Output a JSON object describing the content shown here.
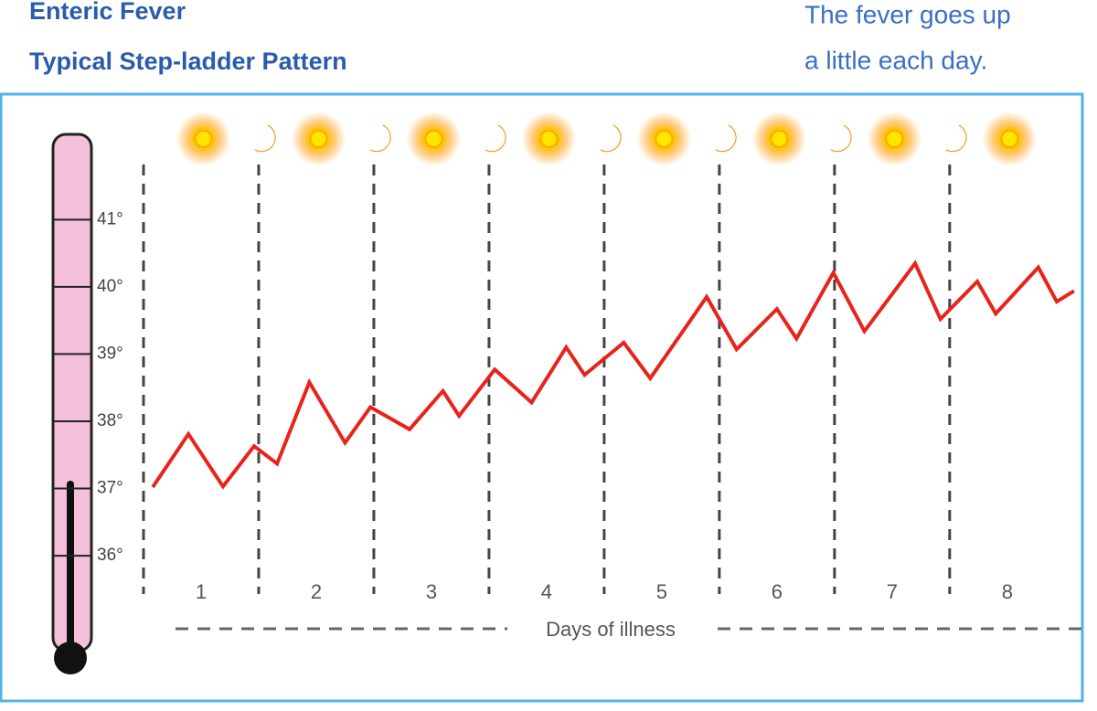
{
  "chart_data": {
    "type": "line",
    "title": "Enteric Fever",
    "subtitle": "Typical Step-ladder Pattern",
    "annotation": [
      "The fever goes up",
      "a little each day."
    ],
    "xlabel": "Days of illness",
    "categories": [
      "1",
      "2",
      "3",
      "4",
      "5",
      "6",
      "7",
      "8"
    ],
    "x": [
      0.08,
      0.39,
      0.69,
      0.96,
      1.16,
      1.44,
      1.75,
      1.97,
      2.31,
      2.6,
      2.74,
      3.05,
      3.37,
      3.67,
      3.83,
      4.17,
      4.4,
      4.89,
      5.15,
      5.5,
      5.67,
      5.99,
      6.26,
      6.7,
      6.92,
      7.24,
      7.4,
      7.77,
      7.93,
      8.08
    ],
    "series": [
      {
        "color": "#e8231b",
        "values": [
          37.02,
          37.81,
          37.03,
          37.63,
          37.37,
          38.58,
          37.68,
          38.21,
          37.88,
          38.45,
          38.08,
          38.77,
          38.28,
          39.1,
          38.69,
          39.17,
          38.64,
          39.85,
          39.07,
          39.67,
          39.23,
          40.21,
          39.34,
          40.35,
          39.52,
          40.08,
          39.6,
          40.29,
          39.78,
          39.94
        ]
      }
    ],
    "xlim": [
      0,
      8.2
    ],
    "ylim": [
      35.43,
      41.82
    ],
    "yticks": [
      {
        "value": 36,
        "label": "36°"
      },
      {
        "value": 37,
        "label": "37°"
      },
      {
        "value": 38,
        "label": "38°"
      },
      {
        "value": 39,
        "label": "39°"
      },
      {
        "value": 40,
        "label": "40°"
      },
      {
        "value": 41,
        "label": "41°"
      }
    ]
  }
}
